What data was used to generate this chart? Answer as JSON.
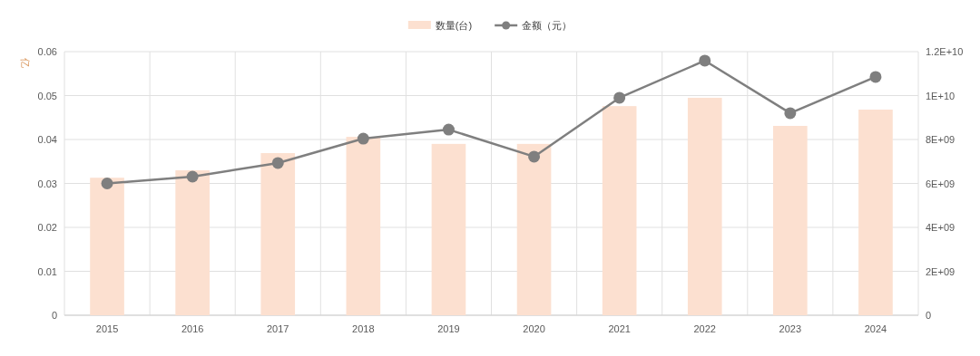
{
  "chart_data": {
    "type": "bar",
    "categories": [
      "2015",
      "2016",
      "2017",
      "2018",
      "2019",
      "2020",
      "2021",
      "2022",
      "2023",
      "2024"
    ],
    "ylabel": "亿",
    "legend": "top",
    "grid": true,
    "marker": "circle",
    "series": [
      {
        "name": "数量(台)",
        "color": "#fce0d0",
        "values": [
          0.0313,
          0.033,
          0.0369,
          0.0406,
          0.039,
          0.039,
          0.0476,
          0.0495,
          0.0431,
          0.0468
        ]
      },
      {
        "name": "金额（元）",
        "type": "line",
        "axis": "y2",
        "color": "#7f7f7f",
        "values": [
          6000000000,
          6310000000,
          6930000000,
          8040000000,
          8450000000,
          7220000000,
          9900000000,
          11590000000,
          9200000000,
          10850000000
        ]
      }
    ],
    "ylim": [
      0,
      0.06
    ],
    "yticks": [
      0,
      0.01,
      0.02,
      0.03,
      0.04,
      0.05,
      0.06
    ],
    "y2lim": [
      0,
      12000000000
    ],
    "y2ticks": [
      0,
      {
        "value": 2000000000,
        "label": "2E+09"
      },
      {
        "value": 4000000000,
        "label": "4E+09"
      },
      {
        "value": 6000000000,
        "label": "6E+09"
      },
      {
        "value": 8000000000,
        "label": "8E+09"
      },
      {
        "value": 10000000000,
        "label": "1E+10"
      },
      {
        "value": 12000000000,
        "label": "1.2E+10"
      }
    ]
  }
}
